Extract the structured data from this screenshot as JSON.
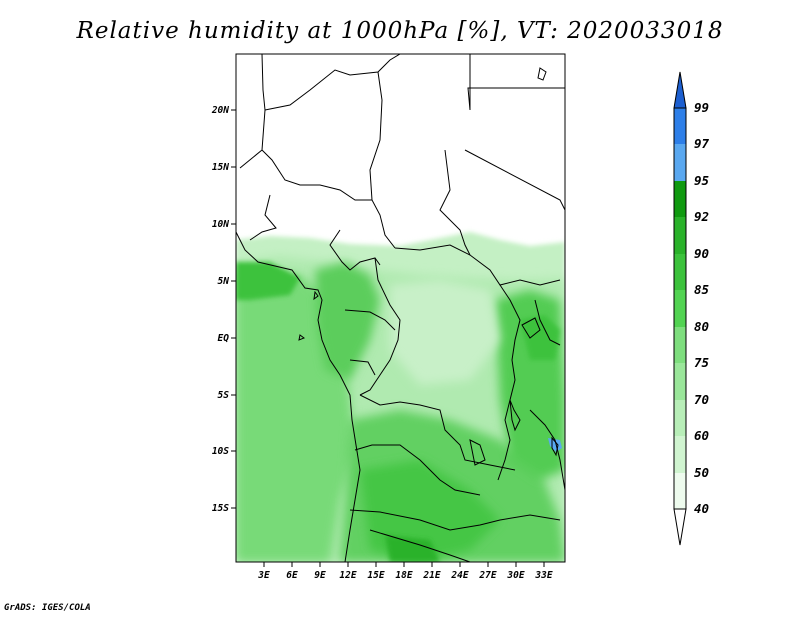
{
  "title": "Relative humidity at 1000hPa [%], VT: 2020033018",
  "credit": "GrADS: IGES/COLA",
  "map": {
    "lat_ticks": [
      "20N",
      "15N",
      "10N",
      "5N",
      "EQ",
      "5S",
      "10S",
      "15S"
    ],
    "lon_ticks": [
      "3E",
      "6E",
      "9E",
      "12E",
      "15E",
      "18E",
      "21E",
      "24E",
      "27E",
      "30E",
      "33E"
    ]
  },
  "colorbar": {
    "labels": [
      "99",
      "97",
      "95",
      "92",
      "90",
      "85",
      "80",
      "75",
      "70",
      "60",
      "50",
      "40"
    ],
    "colors": [
      "#1c5fd0",
      "#2e7fe8",
      "#5aa8f0",
      "#109a10",
      "#2ab22a",
      "#3cc23c",
      "#52d352",
      "#7ede7e",
      "#9ae69a",
      "#b8eeb8",
      "#d0f4d0",
      "#eefbee",
      "#ffffff"
    ]
  }
}
